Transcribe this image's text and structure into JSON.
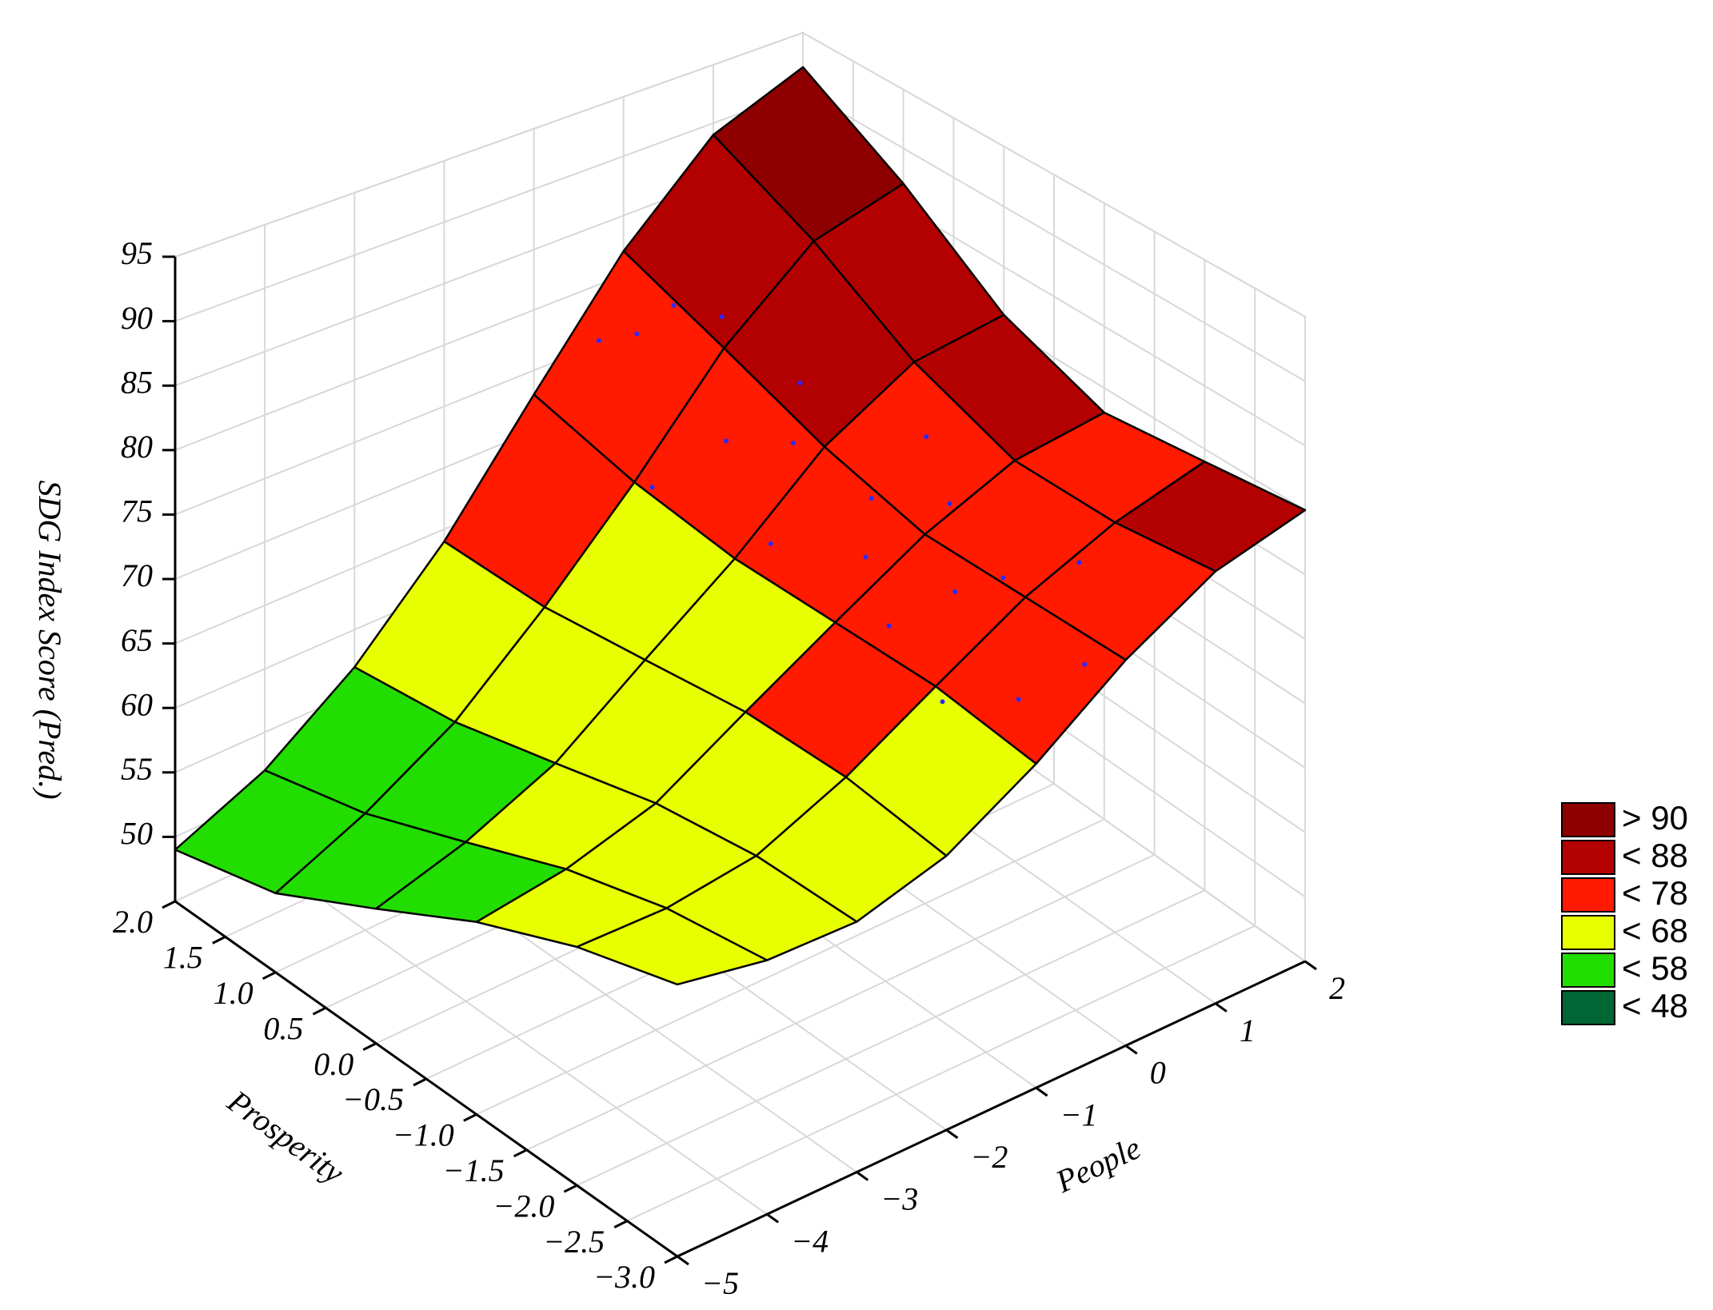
{
  "chart_data": {
    "type": "surface",
    "zlabel": "SDG Index Score (Pred.)",
    "xlabel": "People",
    "ylabel": "Prosperity",
    "xlim": [
      -5,
      2
    ],
    "ylim": [
      -3,
      2
    ],
    "zlim": [
      45,
      95
    ],
    "xticks": [
      {
        "value": -5,
        "label": "−5"
      },
      {
        "value": -4,
        "label": "−4"
      },
      {
        "value": -3,
        "label": "−3"
      },
      {
        "value": -2,
        "label": "−2"
      },
      {
        "value": -1,
        "label": "−1"
      },
      0,
      1,
      2
    ],
    "yticks": [
      {
        "value": 2,
        "label": "2.0"
      },
      {
        "value": 1.5,
        "label": "1.5"
      },
      {
        "value": 1,
        "label": "1.0"
      },
      {
        "value": 0.5,
        "label": "0.5"
      },
      {
        "value": 0,
        "label": "0.0"
      },
      {
        "value": -0.5,
        "label": "−0.5"
      },
      {
        "value": -1,
        "label": "−1.0"
      },
      {
        "value": -1.5,
        "label": "−1.5"
      },
      {
        "value": -2,
        "label": "−2.0"
      },
      {
        "value": -2.5,
        "label": "−2.5"
      },
      {
        "value": -3,
        "label": "−3.0"
      }
    ],
    "zticks": [
      50,
      55,
      60,
      65,
      70,
      75,
      80,
      85,
      90,
      95
    ],
    "grid": true,
    "grid_x": [
      -5,
      -4,
      -3,
      -2,
      -1,
      0,
      1,
      2
    ],
    "grid_y": [
      2,
      1,
      0,
      -1,
      -2,
      -3
    ],
    "z": [
      [
        49,
        52,
        57,
        64,
        73,
        82,
        89,
        92
      ],
      [
        51,
        54,
        58,
        64,
        71,
        79,
        85,
        87
      ],
      [
        55,
        57,
        60,
        65,
        70,
        76,
        80,
        81
      ],
      [
        59,
        60,
        62,
        66,
        70,
        74,
        77,
        78
      ],
      [
        62,
        62,
        63,
        66,
        70,
        74,
        77,
        79
      ],
      [
        64,
        63,
        63,
        65,
        69,
        74,
        78,
        80
      ]
    ],
    "points": {
      "color": "#2a2aff",
      "x": [
        -0.5,
        -0.3,
        0,
        0.2,
        -0.8,
        -0.2,
        0.4,
        0.1,
        -0.6,
        0.3,
        -0.1,
        0.5,
        -0.4,
        0,
        0.2,
        -0.7,
        0.6,
        -0.3,
        0.1,
        0.8
      ],
      "y": [
        1.8,
        1.6,
        1.5,
        1.2,
        1.0,
        0.8,
        0.6,
        0.4,
        0.0,
        -0.2,
        -0.5,
        -0.8,
        -1.0,
        -1.3,
        -1.6,
        -1.8,
        -2.0,
        -2.2,
        -2.5,
        -0.3
      ],
      "z": [
        77,
        78,
        80,
        80,
        70,
        73,
        77,
        74,
        70,
        72,
        70,
        74,
        68,
        71,
        73,
        67,
        75,
        68,
        71,
        76
      ]
    },
    "legend": [
      {
        "label": "> 90",
        "value": 90,
        "color": "#8e0000"
      },
      {
        "label": "< 88",
        "value": 88,
        "color": "#b30000"
      },
      {
        "label": "< 78",
        "value": 78,
        "color": "#ff1a00"
      },
      {
        "label": "< 68",
        "value": 68,
        "color": "#e8ff00"
      },
      {
        "label": "< 58",
        "value": 58,
        "color": "#22dd00"
      },
      {
        "label": "< 48",
        "value": 48,
        "color": "#006633"
      }
    ]
  }
}
